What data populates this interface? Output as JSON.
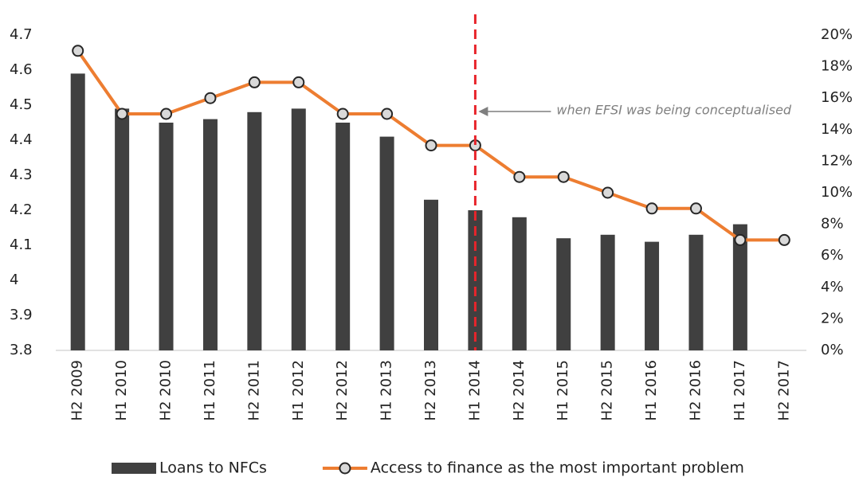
{
  "chart_data": {
    "type": "bar",
    "categories": [
      "H2 2009",
      "H1 2010",
      "H2 2010",
      "H1 2011",
      "H2 2011",
      "H1 2012",
      "H2 2012",
      "H1 2013",
      "H2 2013",
      "H1 2014",
      "H2 2014",
      "H1 2015",
      "H2 2015",
      "H1 2016",
      "H2 2016",
      "H1 2017",
      "H2 2017"
    ],
    "series": [
      {
        "name": "Loans to NFCs",
        "type": "bar",
        "color": "#404040",
        "values": [
          4.59,
          4.49,
          4.45,
          4.46,
          4.48,
          4.49,
          4.45,
          4.41,
          4.23,
          4.2,
          4.18,
          4.12,
          4.13,
          4.11,
          4.13,
          4.16,
          null
        ]
      },
      {
        "name": "Access to finance as the most important problem",
        "type": "line",
        "axis": "y2",
        "color": "#ed7d31",
        "values": [
          19,
          15,
          15,
          16,
          17,
          17,
          15,
          15,
          13,
          13,
          11,
          11,
          10,
          9,
          9,
          7,
          7
        ]
      }
    ],
    "ylim": [
      3.8,
      4.7
    ],
    "yticks": [
      3.8,
      3.9,
      4,
      4.1,
      4.2,
      4.3,
      4.4,
      4.5,
      4.6,
      4.7
    ],
    "y2lim": [
      0,
      20
    ],
    "y2ticks": [
      {
        "value": 0,
        "label": "0%"
      },
      {
        "value": 2,
        "label": "2%"
      },
      {
        "value": 4,
        "label": "4%"
      },
      {
        "value": 6,
        "label": "6%"
      },
      {
        "value": 8,
        "label": "8%"
      },
      {
        "value": 10,
        "label": "10%"
      },
      {
        "value": 12,
        "label": "12%"
      },
      {
        "value": 14,
        "label": "14%"
      },
      {
        "value": 16,
        "label": "16%"
      },
      {
        "value": 18,
        "label": "18%"
      },
      {
        "value": 20,
        "label": "20%"
      }
    ],
    "annotation": {
      "text": "when EFSI was being conceptualised",
      "x": "H1 2014"
    },
    "legend": "bottom"
  }
}
